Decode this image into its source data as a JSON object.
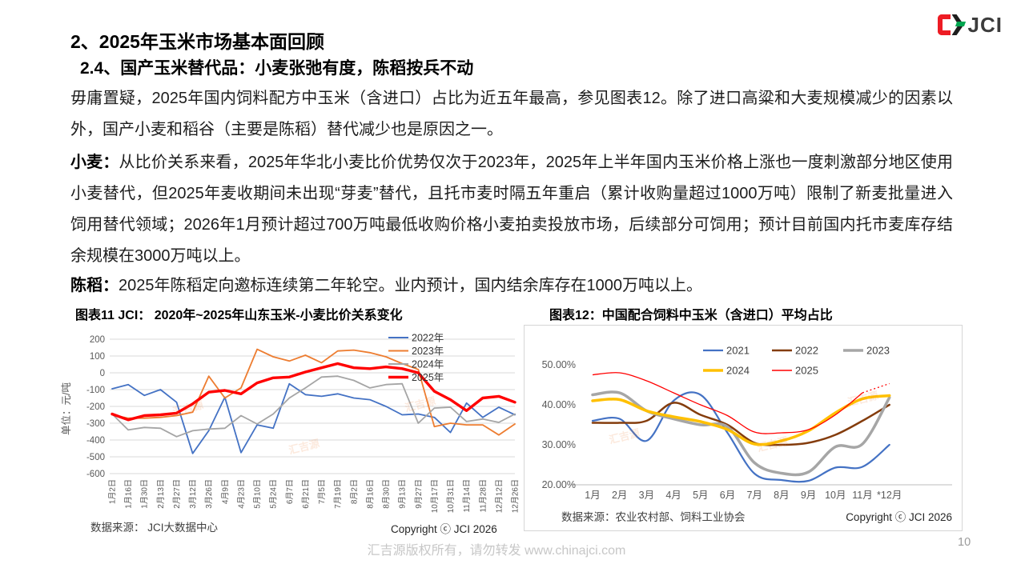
{
  "slide": {
    "title": "2、2025年玉米市场基本面回顾",
    "subtitle": "2.4、国产玉米替代品：小麦张弛有度，陈稻按兵不动",
    "paragraphs": [
      {
        "lead": "",
        "text": "毋庸置疑，2025年国内饲料配方中玉米（含进口）占比为近五年最高，参见图表12。除了进口高粱和大麦规模减少的因素以外，国产小麦和稻谷（主要是陈稻）替代减少也是原因之一。"
      },
      {
        "lead": "小麦：",
        "text": "从比价关系来看，2025年华北小麦比价优势仅次于2023年，2025年上半年国内玉米价格上涨也一度刺激部分地区使用小麦替代，但2025年麦收期间未出现“芽麦”替代，且托市麦时隔五年重启（累计收购量超过1000万吨）限制了新麦批量进入饲用替代领域；2026年1月预计超过700万吨最低收购价格小麦拍卖投放市场，后续部分可饲用；预计目前国内托市麦库存结余规模在3000万吨以上。"
      },
      {
        "lead": "陈稻：",
        "text": "2025年陈稻定向邀标连续第二年轮空。业内预计，国内结余库存在1000万吨以上。"
      }
    ],
    "logo": {
      "text": "JCI"
    },
    "watermark": "汇吉源",
    "footer": {
      "copyright": "汇吉源版权所有，请勿转发 www.chinajci.com",
      "page": "10"
    }
  },
  "chart_data": [
    {
      "type": "line",
      "title": "图表11 JCI： 2020年~2025年山东玉米-小麦比价关系变化",
      "ylabel": "单位：元/吨",
      "ylim": [
        -600,
        200
      ],
      "yticks": [
        200,
        100,
        0,
        -100,
        -200,
        -300,
        -400,
        -500,
        -600
      ],
      "grid": true,
      "legend_position": "top-right-vertical",
      "source": "数据来源： JCI大数据中心",
      "copyright": "Copyright ⓒ JCI 2026",
      "categories": [
        "1月2日",
        "1月16日",
        "1月30日",
        "2月13日",
        "2月27日",
        "3月12日",
        "3月26日",
        "4月9日",
        "4月23日",
        "5月10日",
        "5月24日",
        "6月7日",
        "6月21日",
        "7月5日",
        "7月19日",
        "8月2日",
        "8月16日",
        "8月30日",
        "9月13日",
        "9月27日",
        "10月17日",
        "10月31日",
        "11月14日",
        "11月28日",
        "12月12日",
        "12月26日"
      ],
      "series": [
        {
          "name": "2022年",
          "color": "#4472C4",
          "width": 1.8,
          "values": [
            -95,
            -70,
            -135,
            -100,
            -175,
            -480,
            -345,
            -145,
            -475,
            -310,
            -330,
            -65,
            -130,
            -140,
            -125,
            -150,
            -160,
            -200,
            -250,
            -245,
            -265,
            -355,
            -180,
            -265,
            -205,
            -250
          ]
        },
        {
          "name": "2023年",
          "color": "#ED7D31",
          "width": 1.8,
          "values": [
            -250,
            -270,
            -270,
            -265,
            -255,
            -235,
            -20,
            -150,
            -90,
            140,
            95,
            70,
            105,
            60,
            130,
            135,
            120,
            95,
            55,
            20,
            -320,
            -300,
            -310,
            -310,
            -370,
            -305
          ]
        },
        {
          "name": "2024年",
          "color": "#A5A5A5",
          "width": 1.8,
          "values": [
            -245,
            -340,
            -325,
            -330,
            -380,
            -345,
            -335,
            -330,
            -255,
            -305,
            -245,
            -150,
            -90,
            -25,
            -20,
            -45,
            -90,
            -70,
            -65,
            -300,
            -210,
            -205,
            -290,
            -275,
            -295,
            -245
          ]
        },
        {
          "name": "2025年",
          "color": "#FF0000",
          "width": 3.4,
          "values": [
            -245,
            -280,
            -255,
            -250,
            -240,
            -185,
            -115,
            -105,
            -125,
            -60,
            -30,
            -25,
            5,
            30,
            55,
            30,
            25,
            35,
            25,
            0,
            -110,
            -160,
            -225,
            -150,
            -140,
            -175
          ]
        }
      ]
    },
    {
      "type": "line",
      "title": "图表12：中国配合饲料中玉米（含进口）平均占比",
      "ylim": [
        20,
        52
      ],
      "yticks": [
        50,
        40,
        30,
        20
      ],
      "ytick_labels": [
        "50.00%",
        "40.00%",
        "30.00%",
        "20.00%"
      ],
      "grid": false,
      "smooth": true,
      "legend_position": "top-center-two-rows",
      "source": "数据来源：农业农村部、饲料工业协会",
      "copyright": "Copyright ⓒ JCI 2026",
      "categories": [
        "1月",
        "2月",
        "3月",
        "4月",
        "5月",
        "6月",
        "7月",
        "8月",
        "9月",
        "10月",
        "11月",
        "*12月"
      ],
      "series": [
        {
          "name": "2021",
          "color": "#4472C4",
          "width": 2.2,
          "values": [
            36,
            36.5,
            31,
            41,
            42.5,
            33,
            22.8,
            21.2,
            21,
            24.3,
            24.5,
            30
          ]
        },
        {
          "name": "2022",
          "color": "#843C0C",
          "width": 2.5,
          "values": [
            35.5,
            35.5,
            36,
            40.5,
            37.5,
            35,
            30.5,
            30,
            30.5,
            32.5,
            36,
            40
          ]
        },
        {
          "name": "2023",
          "color": "#A6A6A6",
          "width": 3.5,
          "values": [
            42.5,
            43,
            38.5,
            36.5,
            35,
            34.5,
            25.5,
            22.9,
            23.2,
            29.5,
            30.2,
            41.8
          ]
        },
        {
          "name": "2024",
          "color": "#FFC000",
          "width": 3.5,
          "values": [
            41,
            41.3,
            38.5,
            37,
            35.8,
            33.8,
            30.2,
            31,
            33.5,
            38,
            41.5,
            42.3
          ]
        },
        {
          "name": "2025",
          "color": "#FF0000",
          "width": 1.3,
          "dotted_from": 10,
          "values": [
            47.5,
            48,
            46,
            43,
            40,
            37.3,
            33.2,
            33,
            33.8,
            37.5,
            43,
            45.3
          ]
        }
      ]
    }
  ]
}
